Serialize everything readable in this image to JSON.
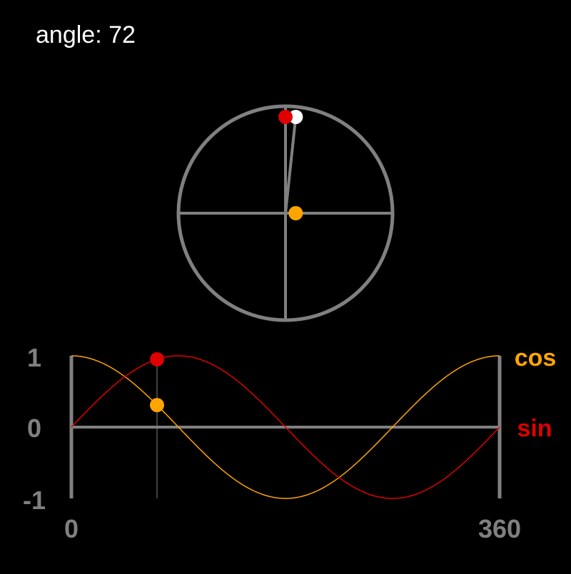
{
  "readout": {
    "label": "angle:",
    "angle": "72"
  },
  "chart_data": {
    "type": "line",
    "x_range": [
      0,
      360
    ],
    "y_range": [
      -1,
      1
    ],
    "x_tick_labels": [
      "0",
      "360"
    ],
    "y_tick_labels": [
      "1",
      "0",
      "-1"
    ],
    "current_angle": 72,
    "series": [
      {
        "name": "cos",
        "function": "cos",
        "color": "#ffa500"
      },
      {
        "name": "sin",
        "function": "sin",
        "color": "#e00000"
      }
    ]
  },
  "colors": {
    "background": "#000000",
    "axis": "#808080",
    "cos": "#ffa500",
    "sin": "#e00000",
    "angle_point": "#ffffff",
    "text": "#ffffff"
  }
}
